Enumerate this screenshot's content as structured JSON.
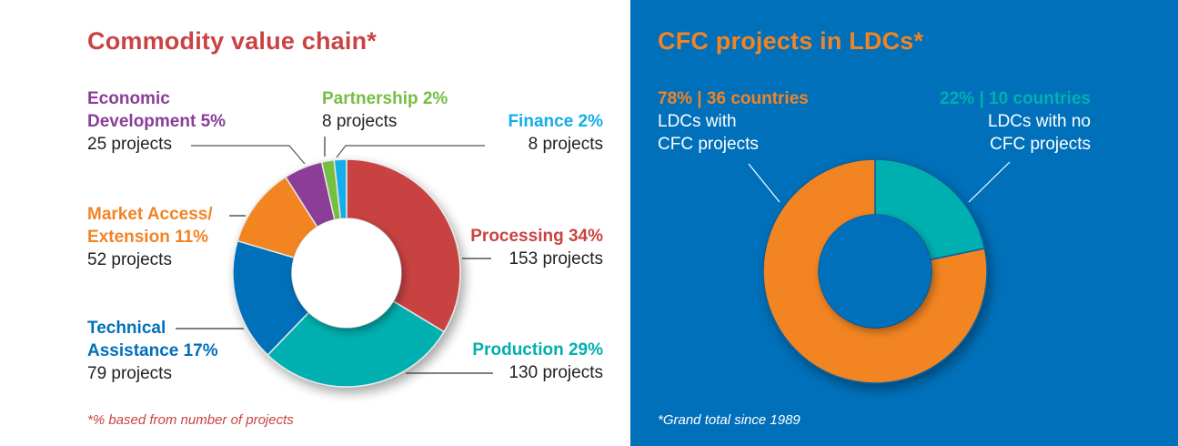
{
  "left": {
    "title": "Commodity value chain*",
    "footnote": "*% based from number of projects",
    "labels": {
      "economic": {
        "line1": "Economic",
        "line2": "Development 5%",
        "sub": "25 projects"
      },
      "partnership": {
        "line1": "Partnership 2%",
        "sub": "8 projects"
      },
      "finance": {
        "line1": "Finance 2%",
        "sub": "8 projects"
      },
      "market": {
        "line1": "Market Access/",
        "line2": "Extension 11%",
        "sub": "52 projects"
      },
      "processing": {
        "line1": "Processing 34%",
        "sub": "153 projects"
      },
      "technical": {
        "line1": "Technical",
        "line2": "Assistance 17%",
        "sub": "79 projects"
      },
      "production": {
        "line1": "Production 29%",
        "sub": "130 projects"
      }
    }
  },
  "right": {
    "title": "CFC projects in LDCs*",
    "footnote": "*Grand total since 1989",
    "with": {
      "head": "78% | 36 countries",
      "line1": "LDCs with",
      "line2": "CFC projects"
    },
    "without": {
      "head": "22% | 10 countries",
      "line1": "LDCs with no",
      "line2": "CFC projects"
    }
  },
  "chart_data": [
    {
      "type": "pie",
      "title": "Commodity value chain*",
      "categories": [
        "Processing",
        "Production",
        "Technical Assistance",
        "Market Access/Extension",
        "Economic Development",
        "Partnership",
        "Finance"
      ],
      "values": [
        153,
        130,
        79,
        52,
        25,
        8,
        8
      ],
      "percents": [
        34,
        29,
        17,
        11,
        5,
        2,
        2
      ],
      "colors": [
        "#c94343",
        "#00b0b0",
        "#0070ba",
        "#f28424",
        "#8b3d98",
        "#74bf43",
        "#12aee8"
      ],
      "donut": true,
      "annotation": "*% based from number of projects"
    },
    {
      "type": "pie",
      "title": "CFC projects in LDCs*",
      "categories": [
        "LDCs with no CFC projects",
        "LDCs with CFC projects"
      ],
      "values": [
        10,
        36
      ],
      "percents": [
        22,
        78
      ],
      "colors": [
        "#00b0b0",
        "#f28424"
      ],
      "donut": true,
      "annotation": "*Grand total since 1989"
    }
  ],
  "colors": {
    "left_title": "#c94343",
    "right_title": "#f28424",
    "right_bg": "#0070ba"
  }
}
